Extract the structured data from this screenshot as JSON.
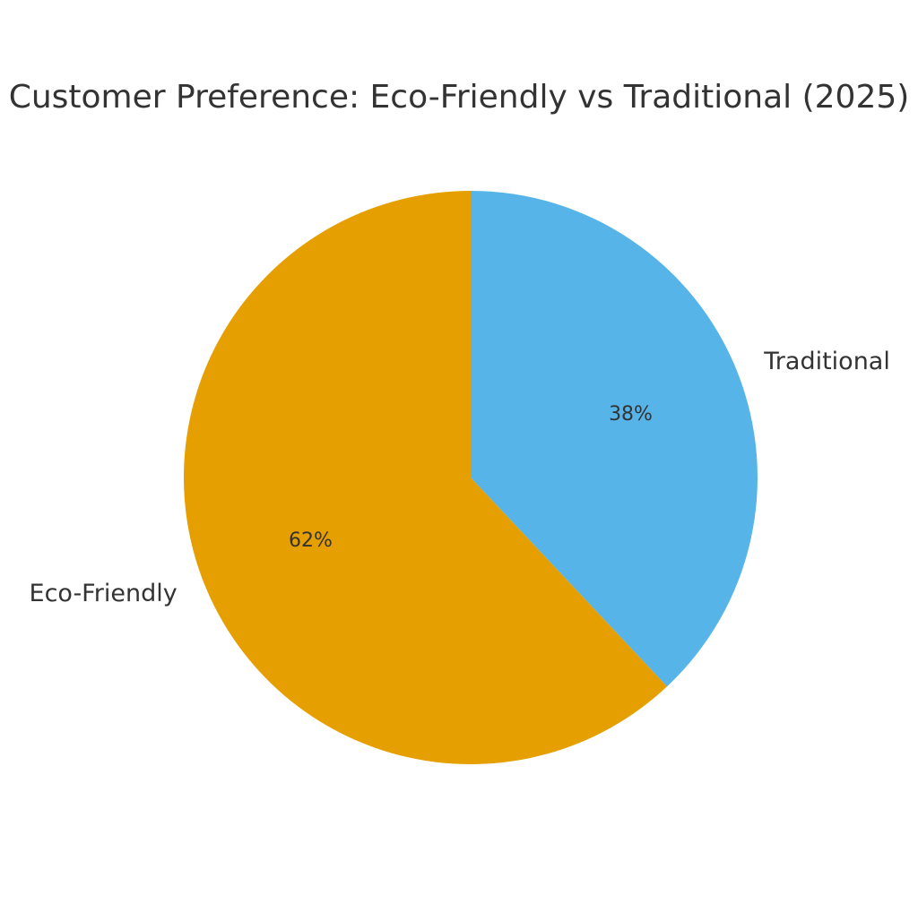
{
  "chart_data": {
    "type": "pie",
    "title": "Customer Preference: Eco-Friendly vs Traditional (2025)",
    "start_angle": "top",
    "direction": "clockwise",
    "slices": [
      {
        "label": "Traditional",
        "value": 38,
        "value_label": "38%",
        "color": "#56B4E9"
      },
      {
        "label": "Eco-Friendly",
        "value": 62,
        "value_label": "62%",
        "color": "#E69F00"
      }
    ],
    "legend": "none"
  }
}
